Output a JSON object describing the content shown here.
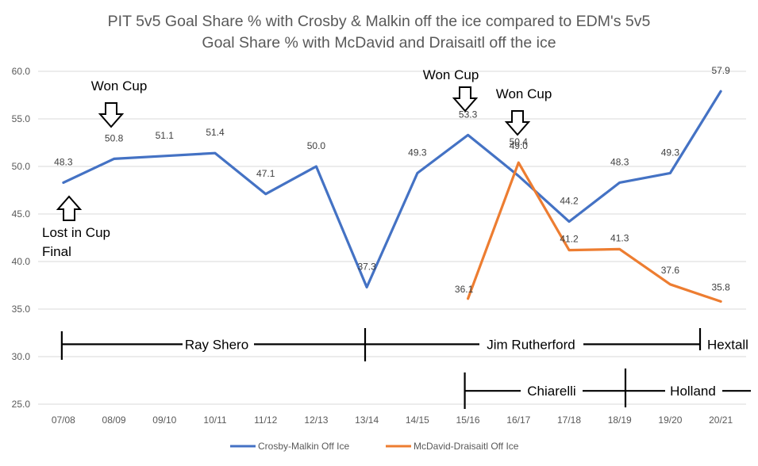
{
  "chart_data": {
    "type": "line",
    "title_lines": [
      "PIT 5v5 Goal Share % with Crosby & Malkin off the ice compared to EDM's 5v5",
      "Goal Share % with McDavid and Draisaitl off the ice"
    ],
    "categories": [
      "07/08",
      "08/09",
      "09/10",
      "10/11",
      "11/12",
      "12/13",
      "13/14",
      "14/15",
      "15/16",
      "16/17",
      "17/18",
      "18/19",
      "19/20",
      "20/21"
    ],
    "y_ticks": [
      "60.0",
      "55.0",
      "50.0",
      "45.0",
      "40.0",
      "35.0",
      "30.0",
      "25.0"
    ],
    "ylim": [
      25,
      60
    ],
    "grid": true,
    "legend_position": "bottom",
    "series": [
      {
        "name": "Crosby-Malkin Off Ice",
        "color": "#4472C4",
        "values": [
          48.3,
          50.8,
          51.1,
          51.4,
          47.1,
          50.0,
          37.3,
          49.3,
          53.3,
          49.0,
          44.2,
          48.3,
          49.3,
          57.9
        ],
        "labels": [
          "48.3",
          "50.8",
          "51.1",
          "51.4",
          "47.1",
          "50.0",
          "37.3",
          "49.3",
          "53.3",
          "49.0",
          "44.2",
          "48.3",
          "49.3",
          "57.9"
        ]
      },
      {
        "name": "McDavid-Draisaitl Off Ice",
        "color": "#ED7D31",
        "values": [
          null,
          null,
          null,
          null,
          null,
          null,
          null,
          null,
          36.1,
          50.4,
          41.2,
          41.3,
          37.6,
          35.8
        ],
        "labels": [
          null,
          null,
          null,
          null,
          null,
          null,
          null,
          null,
          "36.1",
          "50.4",
          "41.2",
          "41.3",
          "37.6",
          "35.8"
        ]
      }
    ],
    "annotations": {
      "won_cup_1": "Won Cup",
      "won_cup_2": "Won Cup",
      "won_cup_3": "Won Cup",
      "lost_line1": "Lost in Cup",
      "lost_line2": "Final"
    },
    "gm_timeline": {
      "gm1": "Ray Shero",
      "gm2": "Jim Rutherford",
      "gm3": "Hextall",
      "coach1": "Chiarelli",
      "coach2": "Holland"
    }
  }
}
